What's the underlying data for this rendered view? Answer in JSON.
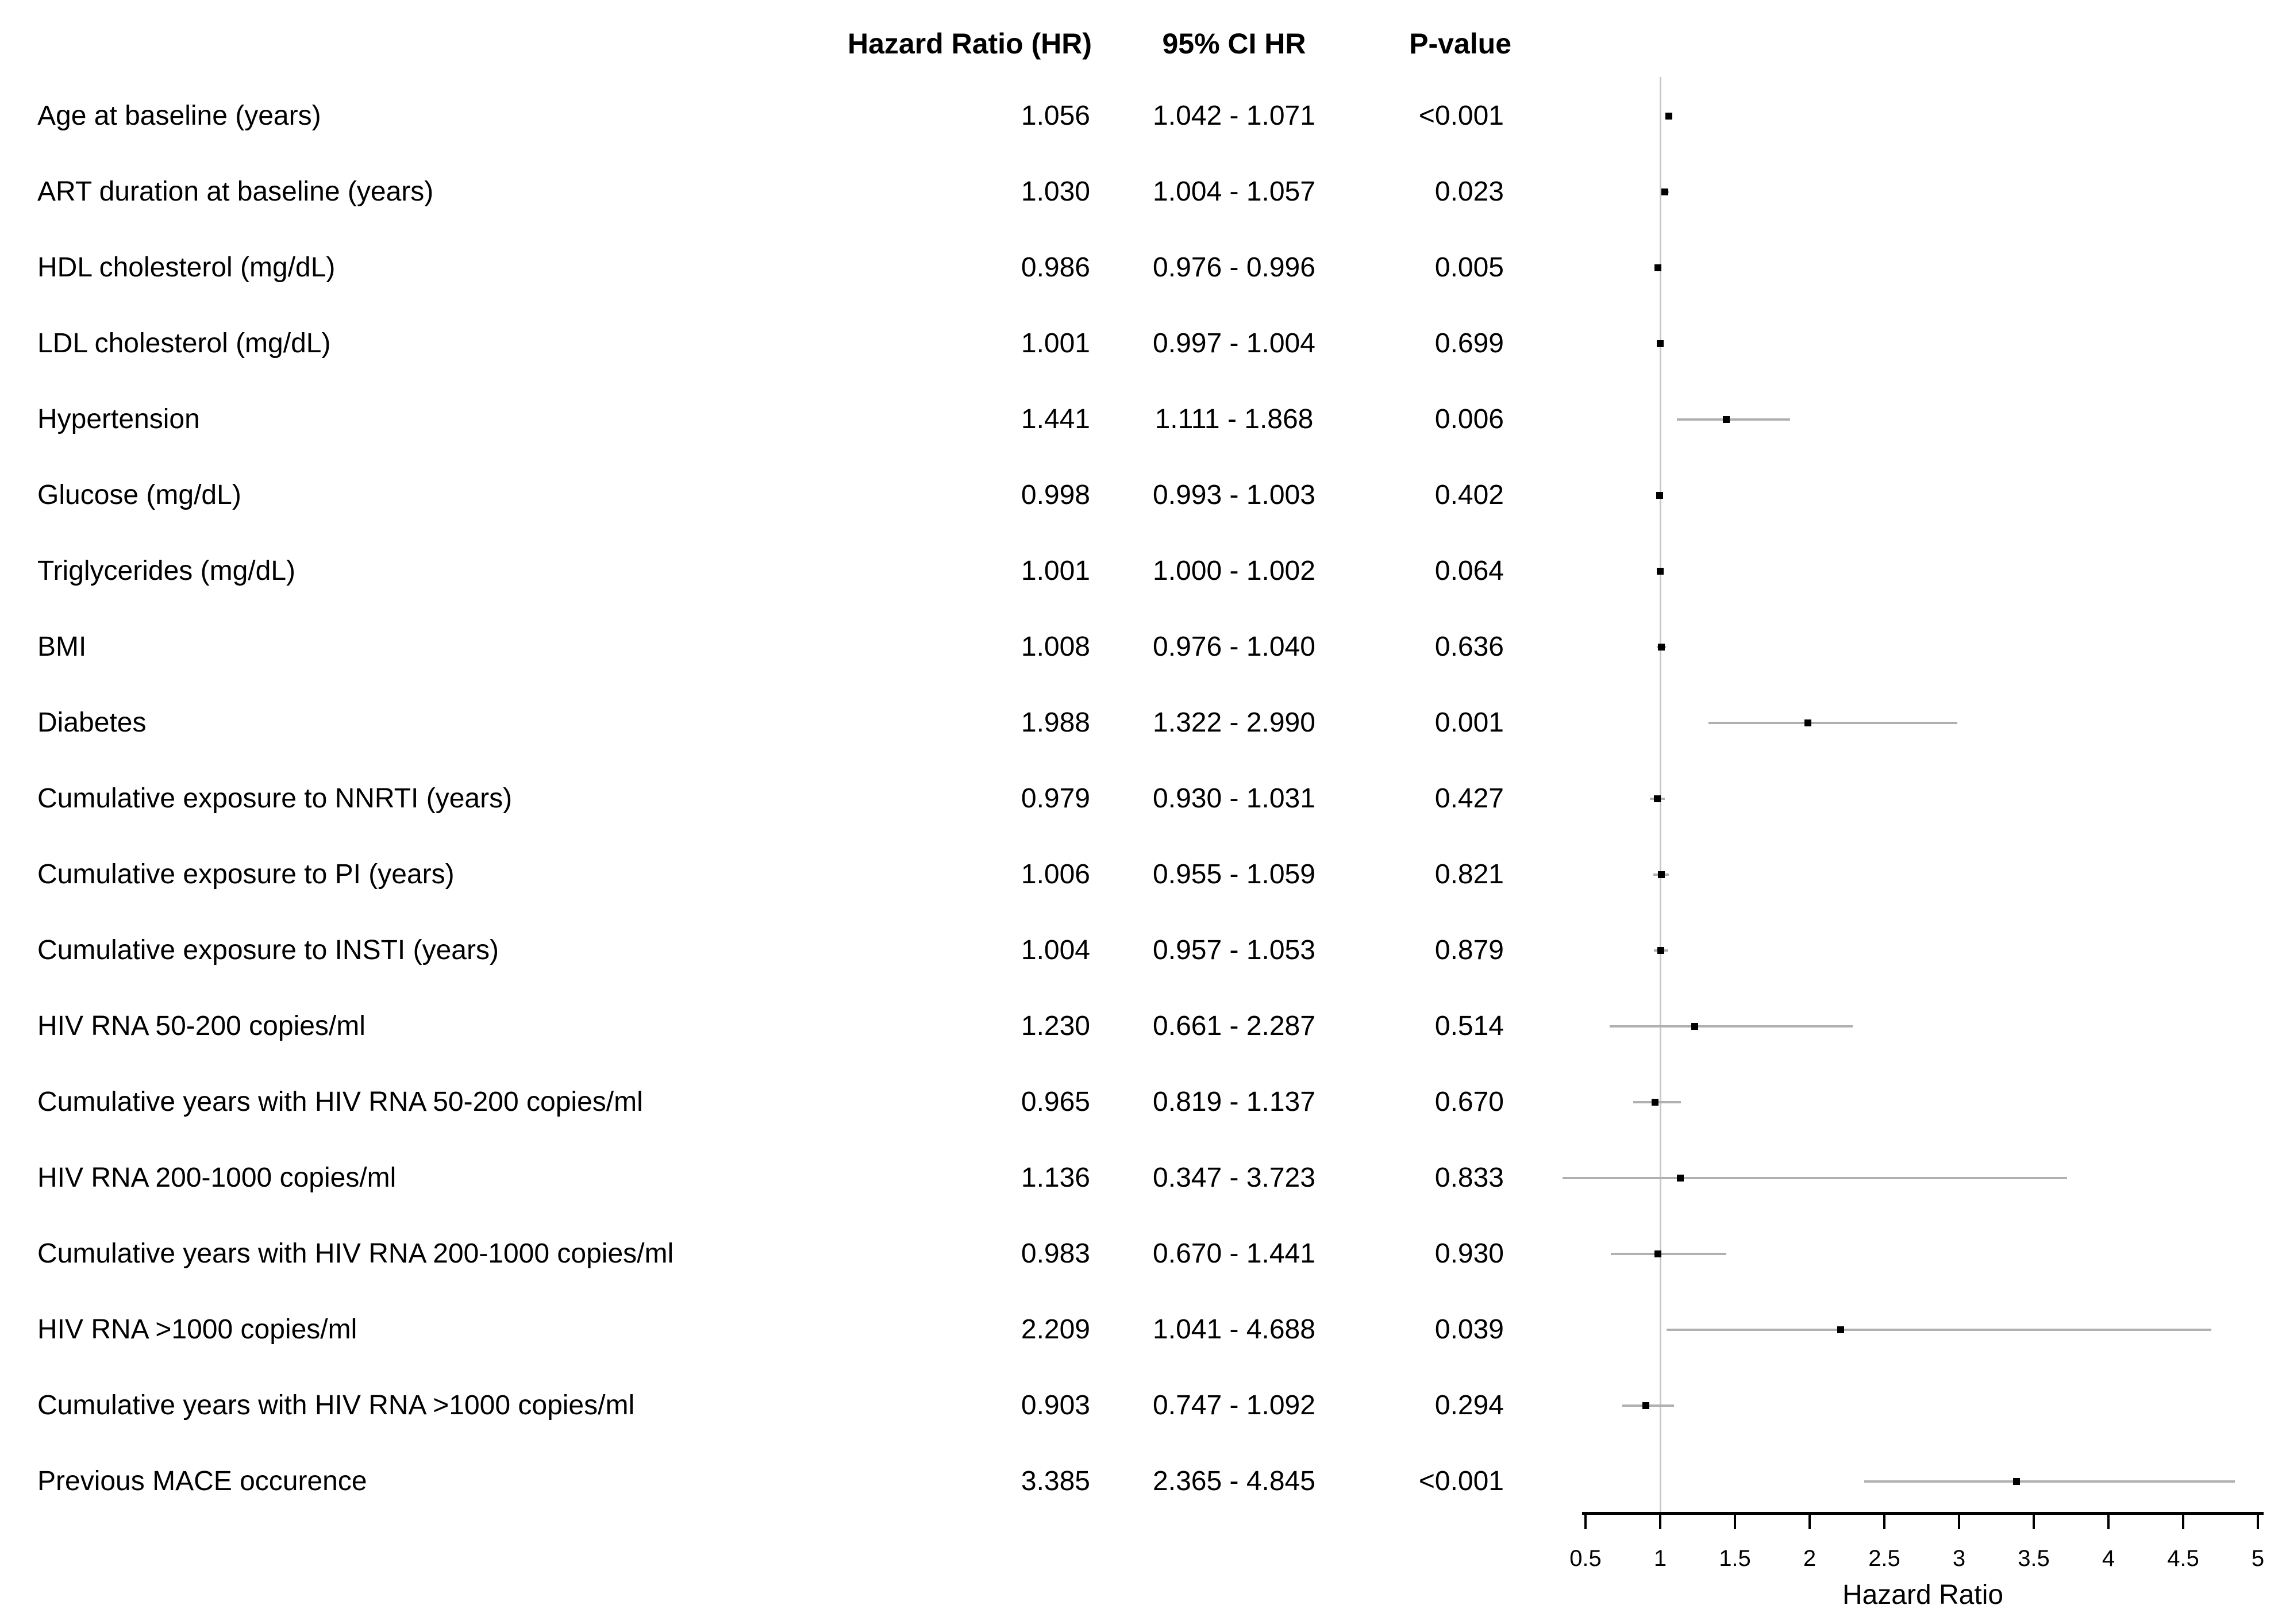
{
  "header": {
    "hazard_ratio": "Hazard Ratio (HR)",
    "ci": "95% CI HR",
    "p_value": "P-value"
  },
  "colors": {
    "text": "#000000",
    "marker": "#000000",
    "ci_line": "#b0b0b0",
    "reference_line": "#c8c8c8",
    "axis": "#000000"
  },
  "chart_data": {
    "type": "scatter",
    "subtype": "forest-plot",
    "title": "",
    "xlabel": "Hazard Ratio",
    "xlim": [
      0.5,
      5
    ],
    "reference_line_x": 1,
    "axis_ticks": [
      "0.5",
      "1",
      "1.5",
      "2",
      "2.5",
      "3",
      "3.5",
      "4",
      "4.5",
      "5"
    ],
    "axis_tick_values": [
      0.5,
      1,
      1.5,
      2,
      2.5,
      3,
      3.5,
      4,
      4.5,
      5
    ],
    "grid": false,
    "legend": "none",
    "rows": [
      {
        "label": "Age at baseline (years)",
        "hr": 1.056,
        "ci_low": 1.042,
        "ci_high": 1.071,
        "hr_text": "1.056",
        "ci_text": "1.042 - 1.071",
        "p": "<0.001"
      },
      {
        "label": "ART duration at baseline (years)",
        "hr": 1.03,
        "ci_low": 1.004,
        "ci_high": 1.057,
        "hr_text": "1.030",
        "ci_text": "1.004 - 1.057",
        "p": "0.023"
      },
      {
        "label": "HDL cholesterol (mg/dL)",
        "hr": 0.986,
        "ci_low": 0.976,
        "ci_high": 0.996,
        "hr_text": "0.986",
        "ci_text": "0.976 - 0.996",
        "p": "0.005"
      },
      {
        "label": "LDL cholesterol (mg/dL)",
        "hr": 1.001,
        "ci_low": 0.997,
        "ci_high": 1.004,
        "hr_text": "1.001",
        "ci_text": "0.997 - 1.004",
        "p": "0.699"
      },
      {
        "label": "Hypertension",
        "hr": 1.441,
        "ci_low": 1.111,
        "ci_high": 1.868,
        "hr_text": "1.441",
        "ci_text": "1.111 - 1.868",
        "p": "0.006"
      },
      {
        "label": "Glucose (mg/dL)",
        "hr": 0.998,
        "ci_low": 0.993,
        "ci_high": 1.003,
        "hr_text": "0.998",
        "ci_text": "0.993 - 1.003",
        "p": "0.402"
      },
      {
        "label": "Triglycerides (mg/dL)",
        "hr": 1.001,
        "ci_low": 1.0,
        "ci_high": 1.002,
        "hr_text": "1.001",
        "ci_text": "1.000 - 1.002",
        "p": "0.064"
      },
      {
        "label": "BMI",
        "hr": 1.008,
        "ci_low": 0.976,
        "ci_high": 1.04,
        "hr_text": "1.008",
        "ci_text": "0.976 - 1.040",
        "p": "0.636"
      },
      {
        "label": "Diabetes",
        "hr": 1.988,
        "ci_low": 1.322,
        "ci_high": 2.99,
        "hr_text": "1.988",
        "ci_text": "1.322 - 2.990",
        "p": "0.001"
      },
      {
        "label": "Cumulative exposure to NNRTI (years)",
        "hr": 0.979,
        "ci_low": 0.93,
        "ci_high": 1.031,
        "hr_text": "0.979",
        "ci_text": "0.930 - 1.031",
        "p": "0.427"
      },
      {
        "label": "Cumulative exposure to PI (years)",
        "hr": 1.006,
        "ci_low": 0.955,
        "ci_high": 1.059,
        "hr_text": "1.006",
        "ci_text": "0.955 - 1.059",
        "p": "0.821"
      },
      {
        "label": "Cumulative exposure to INSTI (years)",
        "hr": 1.004,
        "ci_low": 0.957,
        "ci_high": 1.053,
        "hr_text": "1.004",
        "ci_text": "0.957 - 1.053",
        "p": "0.879"
      },
      {
        "label": "HIV RNA 50-200 copies/ml",
        "hr": 1.23,
        "ci_low": 0.661,
        "ci_high": 2.287,
        "hr_text": "1.230",
        "ci_text": "0.661 - 2.287",
        "p": "0.514"
      },
      {
        "label": "Cumulative years with HIV RNA 50-200 copies/ml",
        "hr": 0.965,
        "ci_low": 0.819,
        "ci_high": 1.137,
        "hr_text": "0.965",
        "ci_text": "0.819 - 1.137",
        "p": "0.670"
      },
      {
        "label": "HIV RNA 200-1000 copies/ml",
        "hr": 1.136,
        "ci_low": 0.347,
        "ci_high": 3.723,
        "hr_text": "1.136",
        "ci_text": "0.347 - 3.723",
        "p": "0.833"
      },
      {
        "label": "Cumulative years with HIV RNA 200-1000 copies/ml",
        "hr": 0.983,
        "ci_low": 0.67,
        "ci_high": 1.441,
        "hr_text": "0.983",
        "ci_text": "0.670 - 1.441",
        "p": "0.930"
      },
      {
        "label": "HIV RNA >1000 copies/ml",
        "hr": 2.209,
        "ci_low": 1.041,
        "ci_high": 4.688,
        "hr_text": "2.209",
        "ci_text": "1.041 - 4.688",
        "p": "0.039"
      },
      {
        "label": "Cumulative years with HIV RNA >1000 copies/ml",
        "hr": 0.903,
        "ci_low": 0.747,
        "ci_high": 1.092,
        "hr_text": "0.903",
        "ci_text": "0.747 - 1.092",
        "p": "0.294"
      },
      {
        "label": "Previous MACE occurence",
        "hr": 3.385,
        "ci_low": 2.365,
        "ci_high": 4.845,
        "hr_text": "3.385",
        "ci_text": "2.365 - 4.845",
        "p": "<0.001"
      }
    ]
  }
}
